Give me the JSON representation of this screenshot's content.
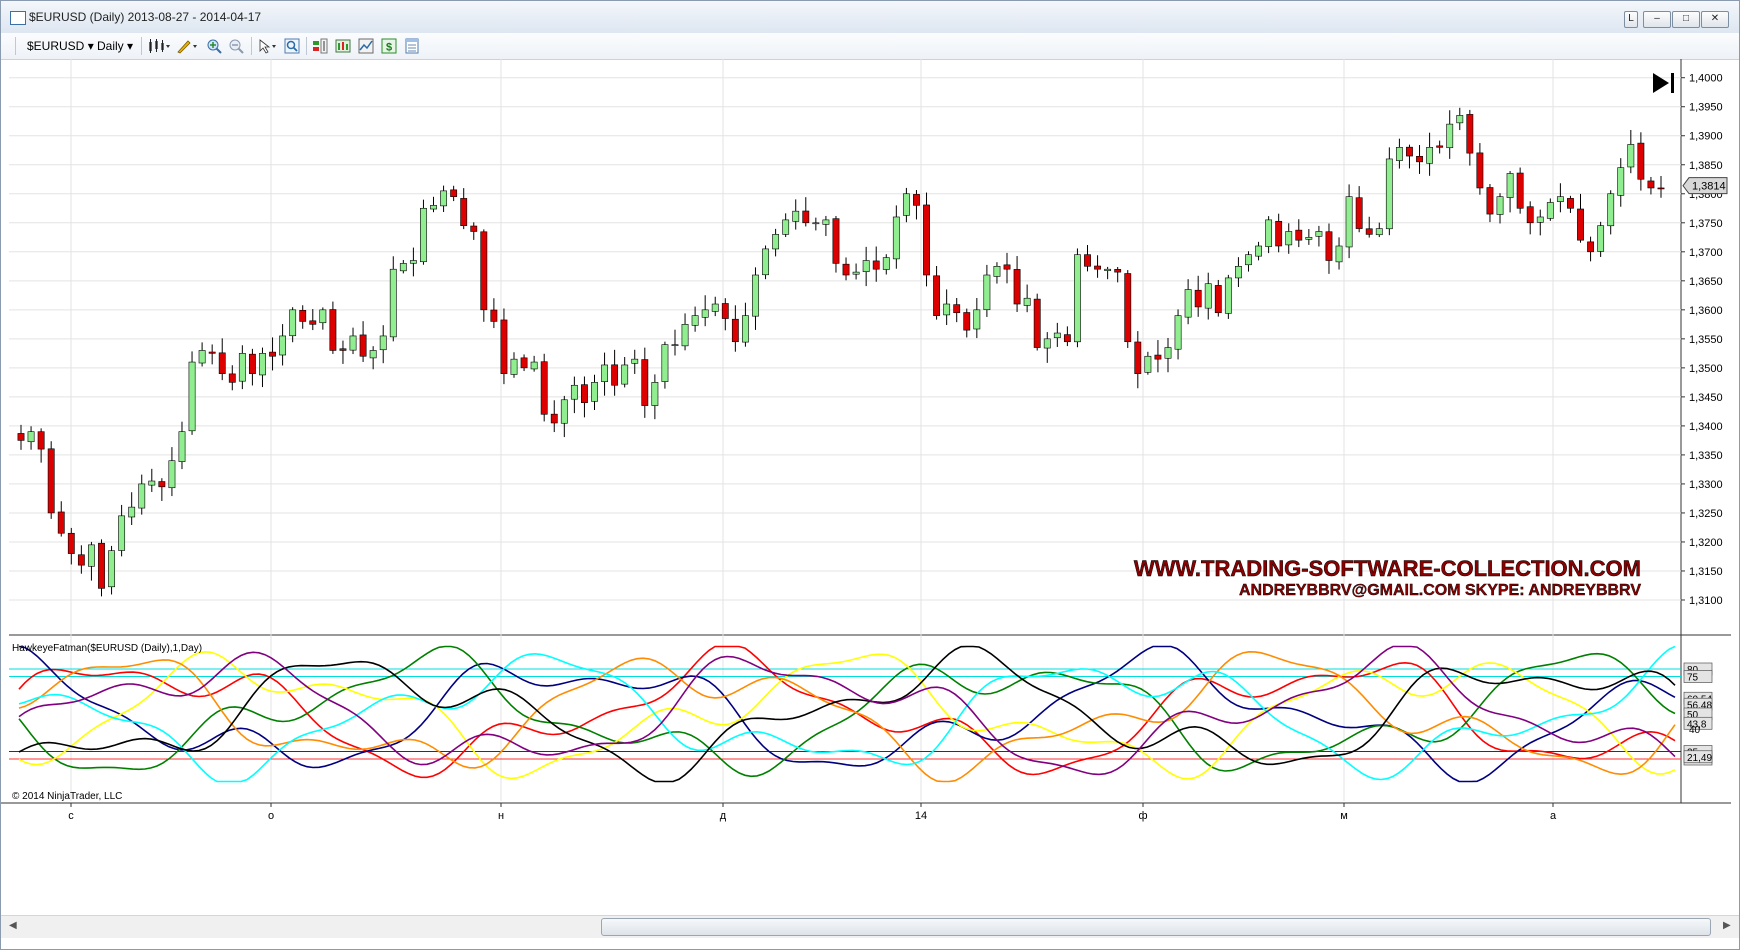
{
  "window": {
    "title": "$EURUSD (Daily)  2013-08-27 - 2014-04-17",
    "buttons": {
      "pin": "L",
      "minimize": "–",
      "maximize": "□",
      "close": "✕"
    }
  },
  "toolbar": {
    "instrument": "$EURUSD",
    "period": "Daily",
    "icons": [
      "bar-type-icon",
      "drawing-tool-icon",
      "zoom-in-icon",
      "zoom-out-icon",
      "pointer-icon",
      "properties-icon",
      "indicators-icon",
      "strategies-icon",
      "chart-trader-icon",
      "money-icon",
      "data-box-icon"
    ]
  },
  "price_panel": {
    "y_ticks": [
      "1,4000",
      "1,3950",
      "1,3900",
      "1,3850",
      "1,3800",
      "1,3750",
      "1,3700",
      "1,3650",
      "1,3600",
      "1,3550",
      "1,3500",
      "1,3450",
      "1,3400",
      "1,3350",
      "1,3300",
      "1,3250",
      "1,3200",
      "1,3150",
      "1,3100"
    ],
    "last_price_label": "1,3814",
    "last_price": 1.3814,
    "watermark_line1": "WWW.TRADING-SOFTWARE-COLLECTION.COM",
    "watermark_line2": "ANDREYBBRV@GMAIL.COM    SKYPE: ANDREYBBRV",
    "colors": {
      "up": "#90ee90",
      "down": "#dd0000",
      "wick": "#000000"
    }
  },
  "indicator_panel": {
    "label": "HawkeyeFatman($EURUSD (Daily),1,Day)",
    "levels": [
      {
        "value": 80,
        "color": "#00dddd"
      },
      {
        "value": 75,
        "color": "#00dddd"
      },
      {
        "value": 25,
        "color": "#aa0000"
      },
      {
        "value": 20,
        "color": "#ff3333"
      }
    ],
    "y_tick": "40",
    "right_labels": [
      "80",
      "75",
      "60,54",
      "56,48",
      "50",
      "43,8",
      "25",
      "20",
      "21,49"
    ],
    "copyright": "© 2014 NinjaTrader, LLC",
    "series_colors": [
      "#ff0000",
      "#000080",
      "#008000",
      "#ffff00",
      "#ff8c00",
      "#00ffff",
      "#000000",
      "#800080"
    ]
  },
  "x_axis": {
    "labels": [
      "с",
      "о",
      "н",
      "д",
      "14",
      "ф",
      "м",
      "а"
    ]
  },
  "chart_data": {
    "type": "candlestick",
    "instrument": "$EURUSD",
    "period": "Daily",
    "date_range": [
      "2013-08-27",
      "2014-04-17"
    ],
    "ylim": [
      1.305,
      1.4015
    ],
    "closes": [
      1.3375,
      1.339,
      1.336,
      1.325,
      1.3215,
      1.318,
      1.316,
      1.3195,
      1.312,
      1.3185,
      1.3245,
      1.326,
      1.33,
      1.3305,
      1.3295,
      1.334,
      1.339,
      1.351,
      1.353,
      1.3525,
      1.349,
      1.3475,
      1.3525,
      1.349,
      1.3525,
      1.352,
      1.3555,
      1.36,
      1.358,
      1.3575,
      1.36,
      1.353,
      1.353,
      1.3555,
      1.352,
      1.353,
      1.3555,
      1.367,
      1.368,
      1.3685,
      1.3775,
      1.378,
      1.3805,
      1.3795,
      1.3745,
      1.3735,
      1.36,
      1.358,
      1.349,
      1.3515,
      1.35,
      1.351,
      1.342,
      1.3405,
      1.3445,
      1.347,
      1.344,
      1.3475,
      1.3505,
      1.347,
      1.3505,
      1.3515,
      1.3435,
      1.3475,
      1.354,
      1.354,
      1.3575,
      1.359,
      1.36,
      1.361,
      1.3585,
      1.3545,
      1.359,
      1.366,
      1.3705,
      1.373,
      1.3755,
      1.377,
      1.375,
      1.375,
      1.3755,
      1.368,
      1.366,
      1.3665,
      1.3685,
      1.367,
      1.369,
      1.376,
      1.38,
      1.378,
      1.366,
      1.359,
      1.361,
      1.3595,
      1.3565,
      1.36,
      1.366,
      1.3675,
      1.367,
      1.361,
      1.362,
      1.3535,
      1.355,
      1.356,
      1.3545,
      1.3695,
      1.3675,
      1.367,
      1.367,
      1.3665,
      1.3545,
      1.349,
      1.352,
      1.3515,
      1.3535,
      1.359,
      1.3635,
      1.3605,
      1.3645,
      1.3595,
      1.3655,
      1.3675,
      1.3695,
      1.371,
      1.3755,
      1.371,
      1.3735,
      1.372,
      1.3725,
      1.3735,
      1.3685,
      1.371,
      1.3795,
      1.374,
      1.373,
      1.374,
      1.386,
      1.388,
      1.3865,
      1.3855,
      1.388,
      1.388,
      1.392,
      1.3935,
      1.387,
      1.381,
      1.3765,
      1.3795,
      1.3835,
      1.3775,
      1.375,
      1.376,
      1.3785,
      1.3795,
      1.3775,
      1.372,
      1.37,
      1.3745,
      1.38,
      1.3845,
      1.3885,
      1.3825,
      1.381,
      1.381
    ]
  }
}
